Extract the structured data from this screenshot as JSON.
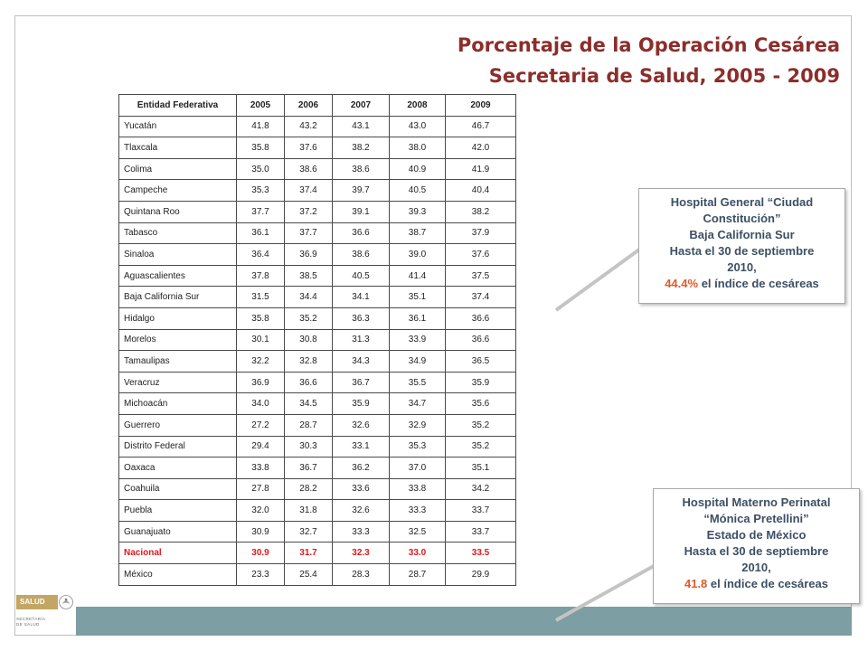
{
  "title": {
    "line1": "Porcentaje de la Operación Cesárea",
    "line2": "Secretaria de Salud, 2005 - 2009"
  },
  "logo": {
    "brand": "SALUD",
    "line1": "SECRETARÍA",
    "line2": "DE SALUD"
  },
  "table": {
    "headers": [
      "Entidad Federativa",
      "2005",
      "2006",
      "2007",
      "2008",
      "2009"
    ],
    "rows": [
      {
        "name": "Yucatán",
        "values": [
          "41.8",
          "43.2",
          "43.1",
          "43.0",
          "46.7"
        ]
      },
      {
        "name": "Tlaxcala",
        "values": [
          "35.8",
          "37.6",
          "38.2",
          "38.0",
          "42.0"
        ]
      },
      {
        "name": "Colima",
        "values": [
          "35.0",
          "38.6",
          "38.6",
          "40.9",
          "41.9"
        ]
      },
      {
        "name": "Campeche",
        "values": [
          "35.3",
          "37.4",
          "39.7",
          "40.5",
          "40.4"
        ]
      },
      {
        "name": "Quintana Roo",
        "values": [
          "37.7",
          "37.2",
          "39.1",
          "39.3",
          "38.2"
        ]
      },
      {
        "name": "Tabasco",
        "values": [
          "36.1",
          "37.7",
          "36.6",
          "38.7",
          "37.9"
        ]
      },
      {
        "name": "Sinaloa",
        "values": [
          "36.4",
          "36.9",
          "38.6",
          "39.0",
          "37.6"
        ]
      },
      {
        "name": "Aguascalientes",
        "values": [
          "37.8",
          "38.5",
          "40.5",
          "41.4",
          "37.5"
        ]
      },
      {
        "name": "Baja California Sur",
        "values": [
          "31.5",
          "34.4",
          "34.1",
          "35.1",
          "37.4"
        ]
      },
      {
        "name": "Hidalgo",
        "values": [
          "35.8",
          "35.2",
          "36.3",
          "36.1",
          "36.6"
        ]
      },
      {
        "name": "Morelos",
        "values": [
          "30.1",
          "30.8",
          "31.3",
          "33.9",
          "36.6"
        ]
      },
      {
        "name": "Tamaulipas",
        "values": [
          "32.2",
          "32.8",
          "34.3",
          "34.9",
          "36.5"
        ]
      },
      {
        "name": "Veracruz",
        "values": [
          "36.9",
          "36.6",
          "36.7",
          "35.5",
          "35.9"
        ]
      },
      {
        "name": "Michoacán",
        "values": [
          "34.0",
          "34.5",
          "35.9",
          "34.7",
          "35.6"
        ]
      },
      {
        "name": "Guerrero",
        "values": [
          "27.2",
          "28.7",
          "32.6",
          "32.9",
          "35.2"
        ]
      },
      {
        "name": "Distrito Federal",
        "values": [
          "29.4",
          "30.3",
          "33.1",
          "35.3",
          "35.2"
        ]
      },
      {
        "name": "Oaxaca",
        "values": [
          "33.8",
          "36.7",
          "36.2",
          "37.0",
          "35.1"
        ]
      },
      {
        "name": "Coahuila",
        "values": [
          "27.8",
          "28.2",
          "33.6",
          "33.8",
          "34.2"
        ]
      },
      {
        "name": "Puebla",
        "values": [
          "32.0",
          "31.8",
          "32.6",
          "33.3",
          "33.7"
        ]
      },
      {
        "name": "Guanajuato",
        "values": [
          "30.9",
          "32.7",
          "33.3",
          "32.5",
          "33.7"
        ]
      },
      {
        "name": "Nacional",
        "values": [
          "30.9",
          "31.7",
          "32.3",
          "33.0",
          "33.5"
        ]
      },
      {
        "name": "México",
        "values": [
          "23.3",
          "25.4",
          "28.3",
          "28.7",
          "29.9"
        ]
      }
    ]
  },
  "callouts": [
    {
      "line1": "Hospital General “Ciudad",
      "line2": "Constitución”",
      "line3": "Baja California Sur",
      "line4": "Hasta el 30 de septiembre",
      "line5": "2010,",
      "value": "44.4%",
      "tail": " el índice de cesáreas"
    },
    {
      "line1": "Hospital Materno Perinatal",
      "line2": "“Mónica Pretellini”",
      "line3": "Estado de México",
      "line4": "Hasta el 30 de septiembre",
      "line5": "2010,",
      "value": "41.8",
      "tail": " el índice de cesáreas"
    }
  ],
  "colors": {
    "title": "#8b2e2b",
    "nacional_row": "#e3161b",
    "callout_text": "#3d4f64",
    "callout_highlight": "#e05a2b",
    "footer_bar": "#7d9ea3"
  }
}
